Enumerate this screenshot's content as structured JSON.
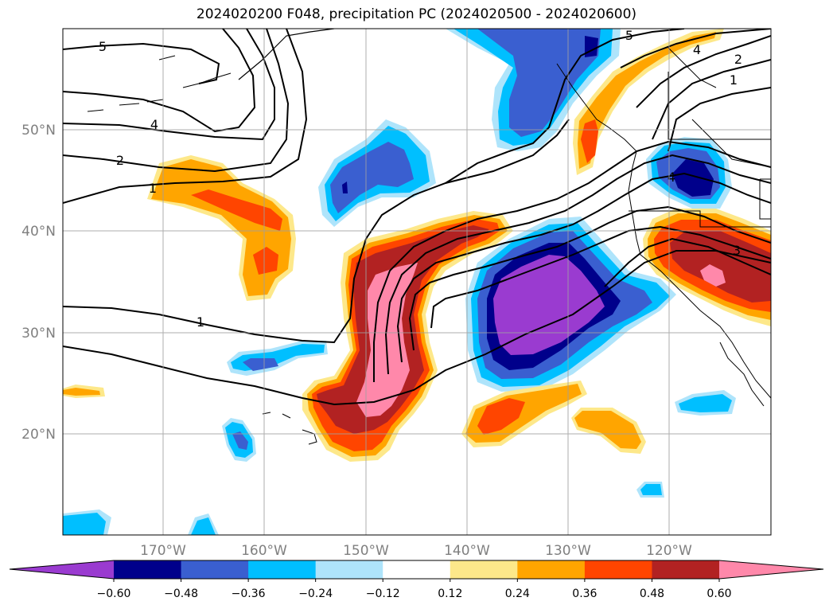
{
  "map": {
    "title": "2024020200 F048, precipitation PC (2024020500 - 2024020600)",
    "lat_labels": [
      "50°N",
      "40°N",
      "30°N",
      "20°N"
    ],
    "lon_labels": [
      "170°W",
      "160°W",
      "150°W",
      "140°W",
      "130°W",
      "120°W"
    ],
    "contour_labels": [
      "5",
      "4",
      "2",
      "1",
      "1",
      "5",
      "4",
      "2",
      "1",
      "4",
      "3"
    ],
    "gridlines": true
  },
  "colorbar": {
    "ticks": [
      "−0.60",
      "−0.48",
      "−0.36",
      "−0.24",
      "−0.12",
      "0.12",
      "0.24",
      "0.36",
      "0.48",
      "0.60"
    ],
    "colors": [
      "#9a3bd0",
      "#00008b",
      "#3a5fd0",
      "#00bfff",
      "#aee4fb",
      "#ffffff",
      "#fde88a",
      "#ffa500",
      "#ff4500",
      "#b22222",
      "#ff88aa"
    ],
    "extend": "both"
  }
}
